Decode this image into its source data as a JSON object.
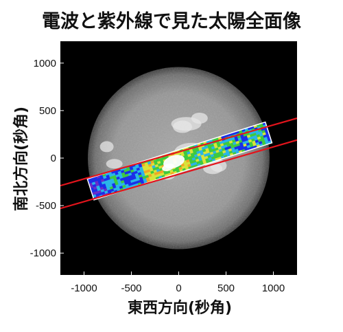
{
  "chart_data": {
    "type": "heatmap",
    "title": "電波と紫外線で見た太陽全面像",
    "xlabel": "東西方向(秒角)",
    "ylabel": "南北方向(秒角)",
    "xlim": [
      -1250,
      1250
    ],
    "ylim": [
      -1230,
      1230
    ],
    "x_ticks": [
      -1000,
      -500,
      0,
      500,
      1000
    ],
    "y_ticks": [
      1000,
      500,
      0,
      -500,
      -1000
    ],
    "x_tick_labels": [
      "-1000",
      "-500",
      "0",
      "500",
      "1000"
    ],
    "y_tick_labels": [
      "1000",
      "500",
      "0",
      "-500",
      "-1000"
    ],
    "grid": false,
    "background": "black",
    "solar_disk": {
      "center": [
        0,
        0
      ],
      "radius": 960
    },
    "radio_strip": {
      "start": [
        -930,
        -330
      ],
      "end": [
        950,
        270
      ],
      "width": 230,
      "boundary_lines": [
        {
          "from": [
            -1250,
            -290
          ],
          "to": [
            1250,
            420
          ]
        },
        {
          "from": [
            -1250,
            -530
          ],
          "to": [
            1250,
            190
          ]
        }
      ]
    },
    "colors": {
      "background": "#000000",
      "disk": "#9a9a9a",
      "boundary_lines": "#e3141c",
      "strip_outline": "#ffffff",
      "colormap": [
        "#6a2cc9",
        "#1b2ee8",
        "#2ab5e8",
        "#3fc93f",
        "#d8e33a",
        "#f2a524",
        "#ff2a1c",
        "#ffffff"
      ]
    }
  }
}
